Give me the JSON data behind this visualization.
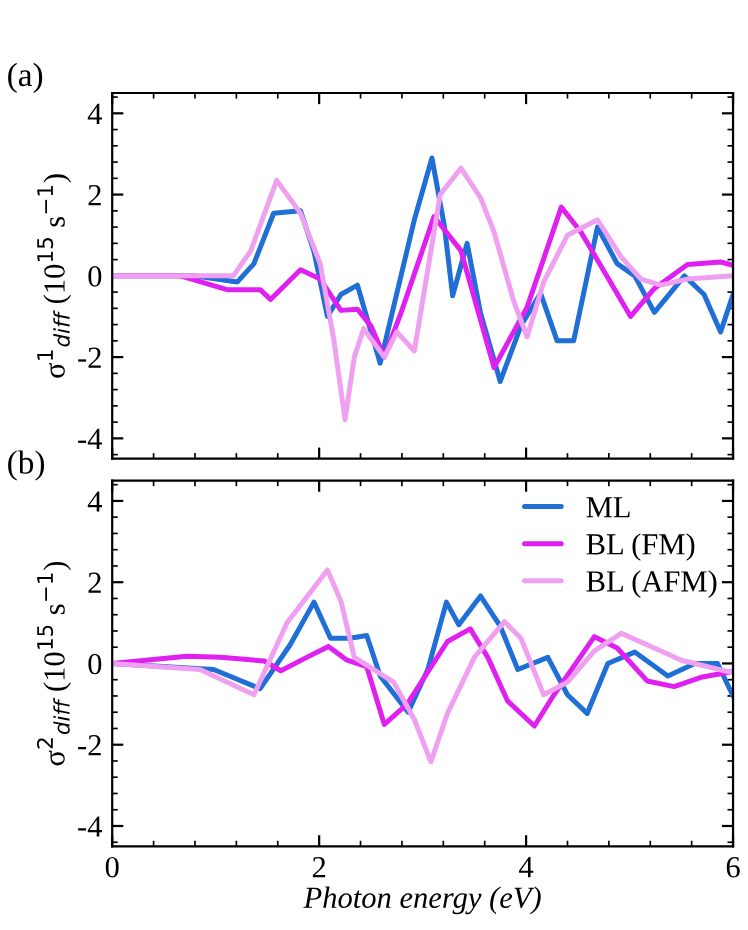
{
  "chart_data": [
    {
      "type": "line",
      "ylabel": "σ$^{1}$$_{diff}$ (10$^{15}$ s$^{−1}$)",
      "annotations": [
        "(a)"
      ],
      "xlim": [
        0,
        6
      ],
      "xticks": [
        0,
        2,
        4,
        6
      ],
      "ylim": [
        -4.5,
        4.5
      ],
      "yticks": [
        -4,
        -2,
        0,
        2,
        4
      ],
      "tick_labels": "y",
      "legend": false,
      "grid": false,
      "series": [
        {
          "color": "#1f6fd6",
          "x": [
            0,
            0.79,
            1.21,
            1.37,
            1.56,
            1.82,
            1.95,
            2.08,
            2.21,
            2.37,
            2.59,
            2.92,
            3.09,
            3.21,
            3.29,
            3.43,
            3.56,
            3.75,
            3.95,
            4.14,
            4.3,
            4.46,
            4.69,
            4.88,
            5.05,
            5.24,
            5.53,
            5.72,
            5.88,
            6.0
          ],
          "values": [
            0,
            0,
            -0.15,
            0.3,
            1.54,
            1.6,
            0.6,
            -1.0,
            -0.46,
            -0.23,
            -2.15,
            1.38,
            2.9,
            1.23,
            -0.49,
            0.8,
            -0.92,
            -2.6,
            -1.23,
            -0.43,
            -1.6,
            -1.6,
            1.2,
            0.3,
            0,
            -0.9,
            0,
            -0.46,
            -1.38,
            -0.46
          ]
        },
        {
          "color": "#e020f0",
          "x": [
            0,
            0.66,
            1.11,
            1.43,
            1.53,
            1.82,
            2.01,
            2.21,
            2.37,
            2.5,
            2.63,
            2.79,
            3.11,
            3.37,
            3.69,
            4.01,
            4.34,
            4.53,
            5.01,
            5.24,
            5.56,
            5.88,
            6.0
          ],
          "values": [
            0,
            0,
            -0.34,
            -0.34,
            -0.58,
            0.15,
            -0.08,
            -0.85,
            -0.82,
            -1.23,
            -2.0,
            -0.92,
            1.46,
            0.62,
            -2.26,
            -0.77,
            1.69,
            1.08,
            -1.0,
            -0.31,
            0.28,
            0.34,
            0.26
          ]
        },
        {
          "color": "#f0a0f0",
          "x": [
            0,
            1.17,
            1.34,
            1.59,
            1.82,
            2.01,
            2.14,
            2.25,
            2.34,
            2.43,
            2.63,
            2.75,
            2.92,
            3.05,
            3.17,
            3.37,
            3.56,
            3.69,
            3.88,
            4.01,
            4.17,
            4.4,
            4.69,
            4.92,
            5.11,
            5.3,
            5.56,
            6.0
          ],
          "values": [
            0,
            0,
            0.62,
            2.35,
            1.54,
            0.3,
            -1.54,
            -3.54,
            -2.0,
            -1.3,
            -2.0,
            -1.38,
            -1.85,
            0.15,
            2.0,
            2.65,
            1.92,
            1.08,
            -0.62,
            -1.5,
            -0.15,
            1.0,
            1.38,
            0.46,
            -0.08,
            -0.23,
            -0.08,
            0
          ]
        }
      ]
    },
    {
      "type": "line",
      "xlabel": "Photon energy (eV)",
      "ylabel": "σ$^{2}$$_{diff}$ (10$^{15}$ s$^{−1}$)",
      "annotations": [
        "(b)"
      ],
      "xlim": [
        0,
        6
      ],
      "xticks": [
        0,
        2,
        4,
        6
      ],
      "ylim": [
        -4.5,
        4.5
      ],
      "yticks": [
        -4,
        -2,
        0,
        2,
        4
      ],
      "legend": "top right",
      "grid": false,
      "series": [
        {
          "name": "ML",
          "color": "#1f6fd6",
          "x": [
            0,
            0.98,
            1.43,
            1.72,
            1.95,
            2.11,
            2.3,
            2.46,
            2.59,
            2.86,
            3.05,
            3.23,
            3.35,
            3.56,
            3.75,
            3.92,
            4.21,
            4.4,
            4.59,
            4.79,
            5.05,
            5.37,
            5.63,
            5.85,
            6.0
          ],
          "values": [
            0,
            -0.15,
            -0.62,
            0.46,
            1.51,
            0.62,
            0.62,
            0.69,
            -0.31,
            -1.2,
            -0.15,
            1.51,
            0.95,
            1.66,
            0.92,
            -0.15,
            0.15,
            -0.77,
            -1.23,
            0,
            0.28,
            -0.31,
            0,
            0,
            -0.8
          ]
        },
        {
          "name": "BL (FM)",
          "color": "#e020f0",
          "x": [
            0,
            0.72,
            1.05,
            1.47,
            1.63,
            1.88,
            2.09,
            2.27,
            2.46,
            2.63,
            2.85,
            3.24,
            3.46,
            3.63,
            3.82,
            4.08,
            4.27,
            4.66,
            4.88,
            5.17,
            5.43,
            5.69,
            6.0
          ],
          "values": [
            0,
            0.18,
            0.15,
            0.06,
            -0.18,
            0.15,
            0.42,
            0.08,
            -0.08,
            -1.5,
            -1.0,
            0.54,
            0.85,
            0.15,
            -0.92,
            -1.54,
            -0.77,
            0.66,
            0.38,
            -0.43,
            -0.57,
            -0.34,
            -0.2
          ]
        },
        {
          "name": "BL (AFM)",
          "color": "#f0a0f0",
          "x": [
            0,
            0.85,
            1.37,
            1.69,
            2.08,
            2.21,
            2.34,
            2.72,
            2.92,
            3.08,
            3.24,
            3.5,
            3.79,
            3.95,
            4.17,
            4.4,
            4.66,
            4.92,
            5.17,
            5.5,
            6.0
          ],
          "values": [
            0,
            -0.15,
            -0.77,
            1.0,
            2.3,
            1.54,
            0.15,
            -0.46,
            -1.38,
            -2.42,
            -1.23,
            0.15,
            1.03,
            0.62,
            -0.77,
            -0.46,
            0.31,
            0.74,
            0.46,
            0.08,
            -0.23
          ]
        }
      ]
    }
  ]
}
